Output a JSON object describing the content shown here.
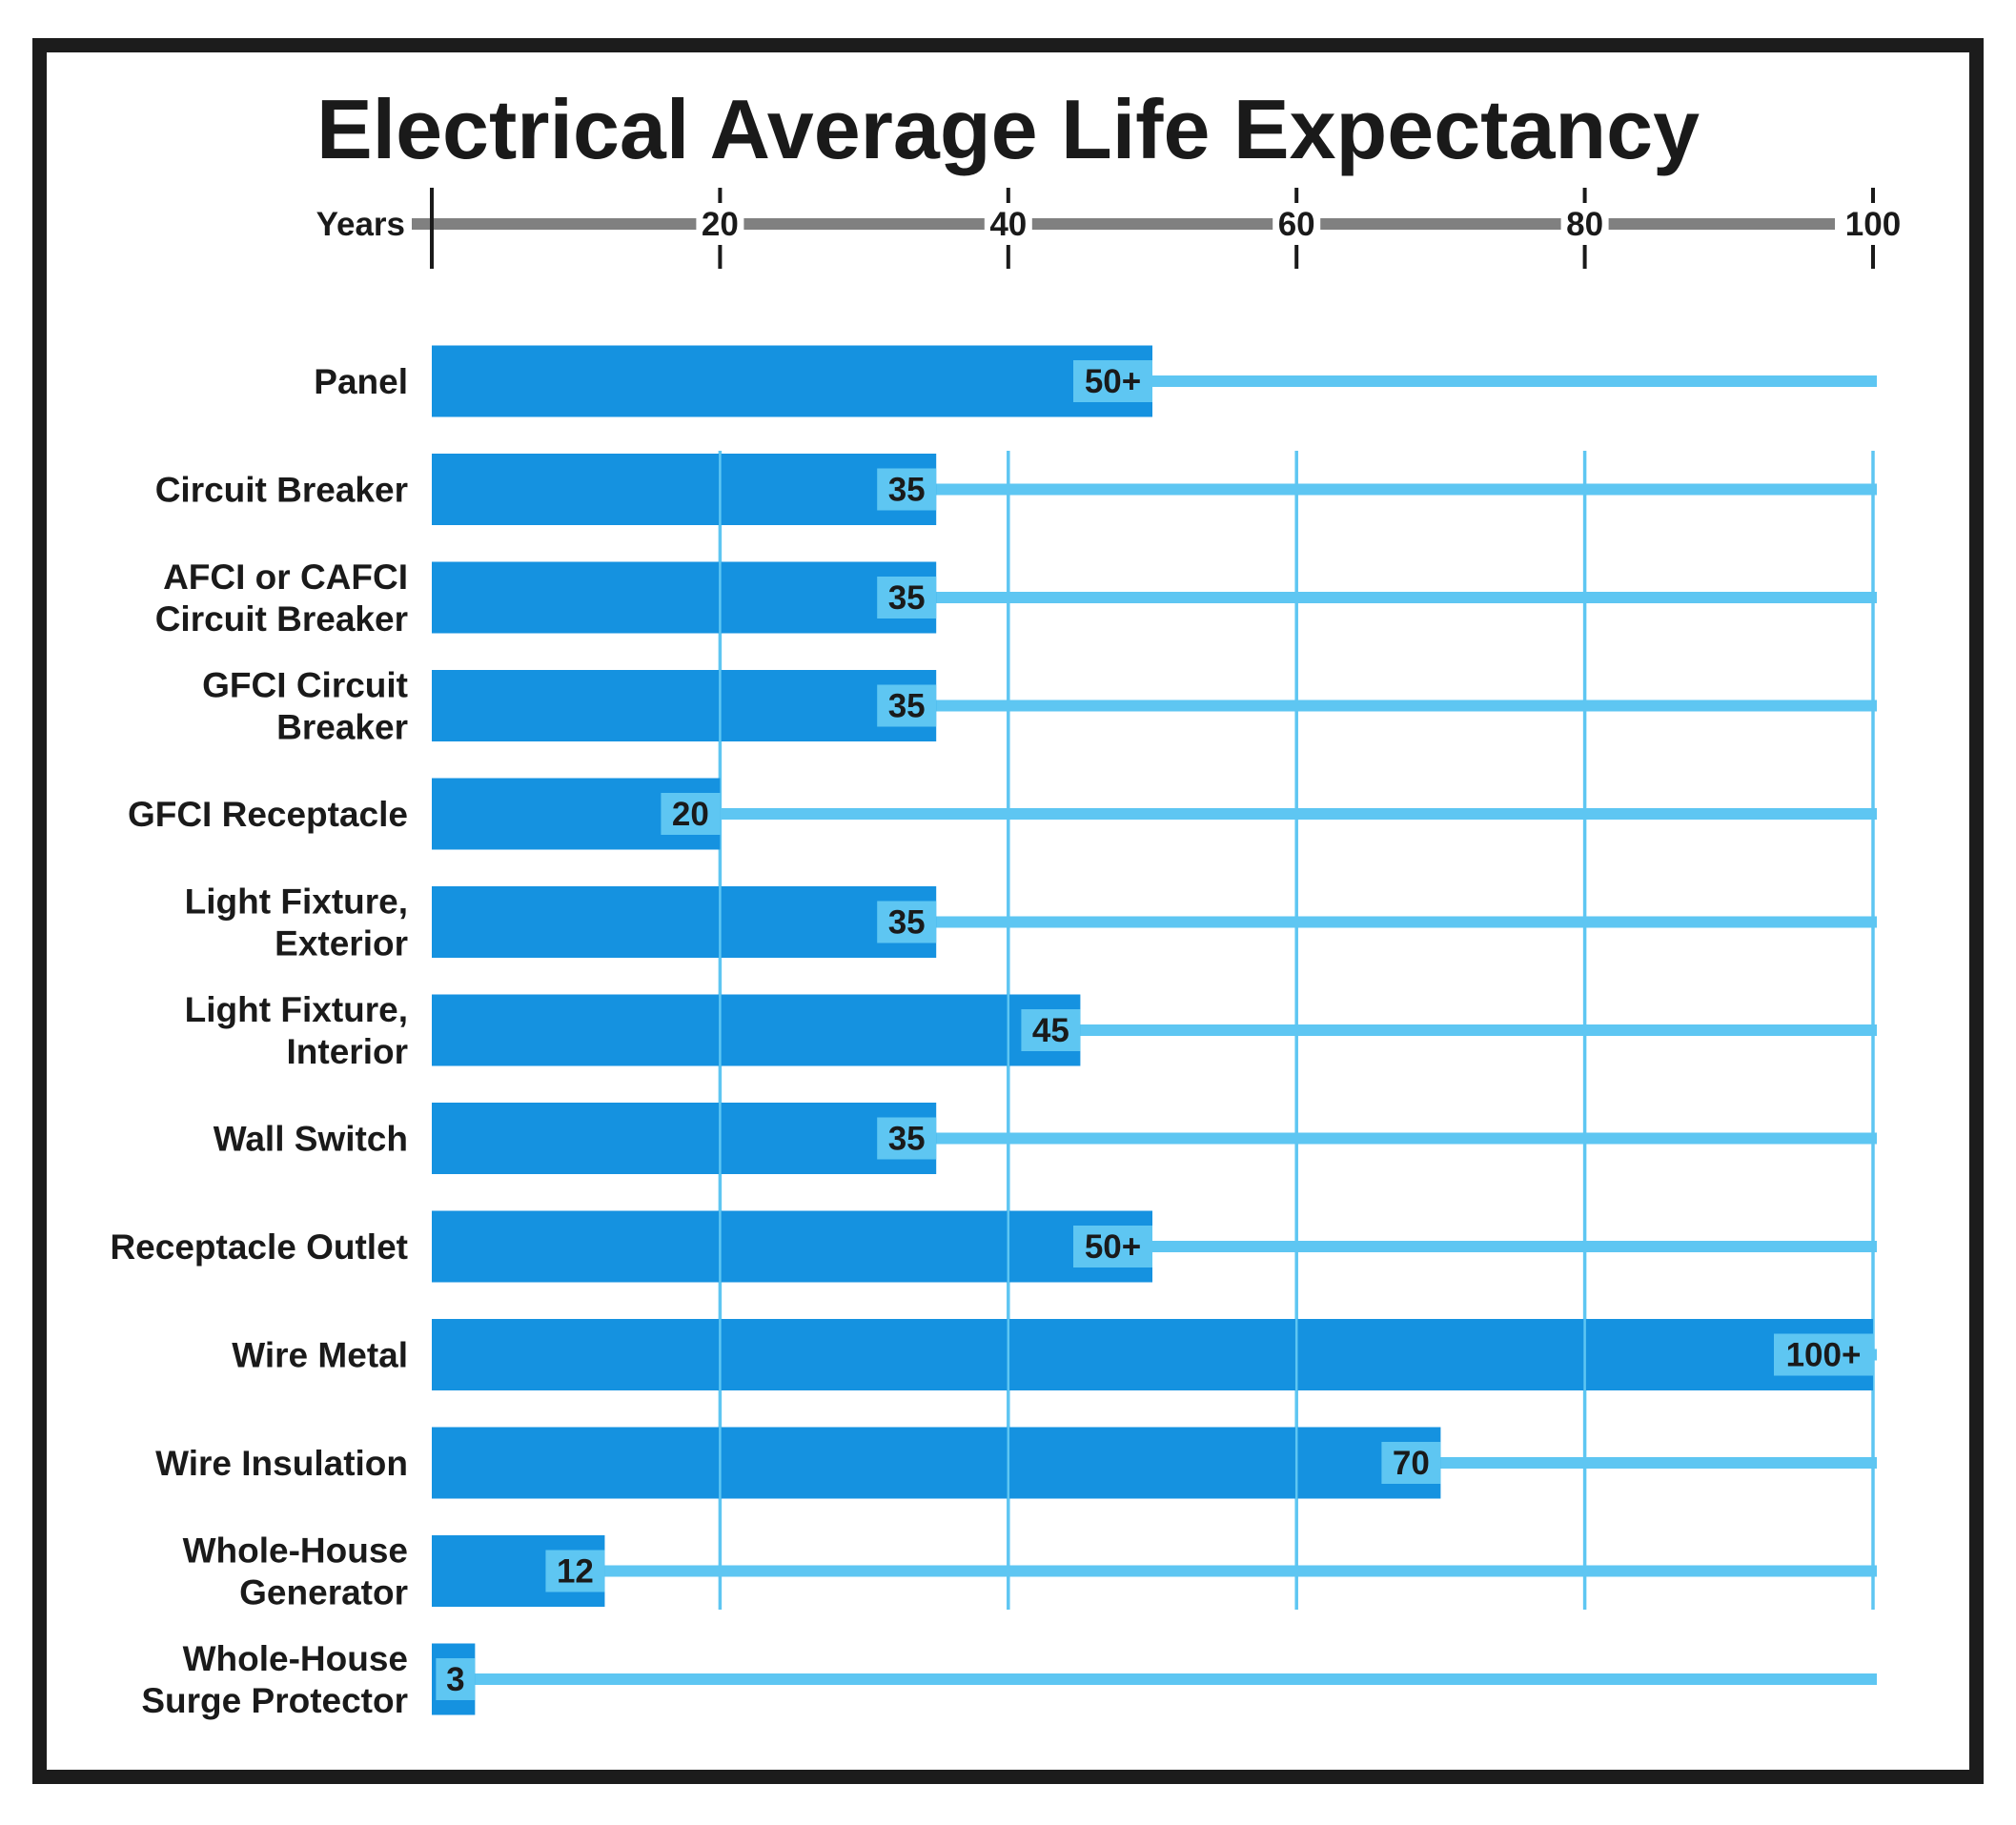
{
  "chart_data": {
    "type": "bar",
    "orientation": "horizontal",
    "title": "Electrical Average Life Expectancy",
    "xlabel": "Years",
    "xlim": [
      0,
      100
    ],
    "xticks": [
      20,
      40,
      60,
      80,
      100
    ],
    "grid": true,
    "colors": {
      "bar": "#1592e0",
      "track": "#5ec6f2",
      "label_box": "#5ec6f2",
      "axis": "#808080",
      "frame": "#1c1c1c"
    },
    "categories": [
      [
        "Panel"
      ],
      [
        "Circuit Breaker"
      ],
      [
        "AFCI or CAFCI",
        "Circuit Breaker"
      ],
      [
        "GFCI Circuit",
        "Breaker"
      ],
      [
        "GFCI Receptacle"
      ],
      [
        "Light Fixture,",
        "Exterior"
      ],
      [
        "Light Fixture,",
        "Interior"
      ],
      [
        "Wall Switch"
      ],
      [
        "Receptacle Outlet"
      ],
      [
        "Wire Metal"
      ],
      [
        "Wire Insulation"
      ],
      [
        "Whole-House",
        "Generator"
      ],
      [
        "Whole-House",
        "Surge Protector"
      ]
    ],
    "values": [
      50,
      35,
      35,
      35,
      20,
      35,
      45,
      35,
      50,
      100,
      70,
      12,
      3
    ],
    "value_labels": [
      "50+",
      "35",
      "35",
      "35",
      "20",
      "35",
      "45",
      "35",
      "50+",
      "100+",
      "70",
      "12",
      "3"
    ]
  }
}
